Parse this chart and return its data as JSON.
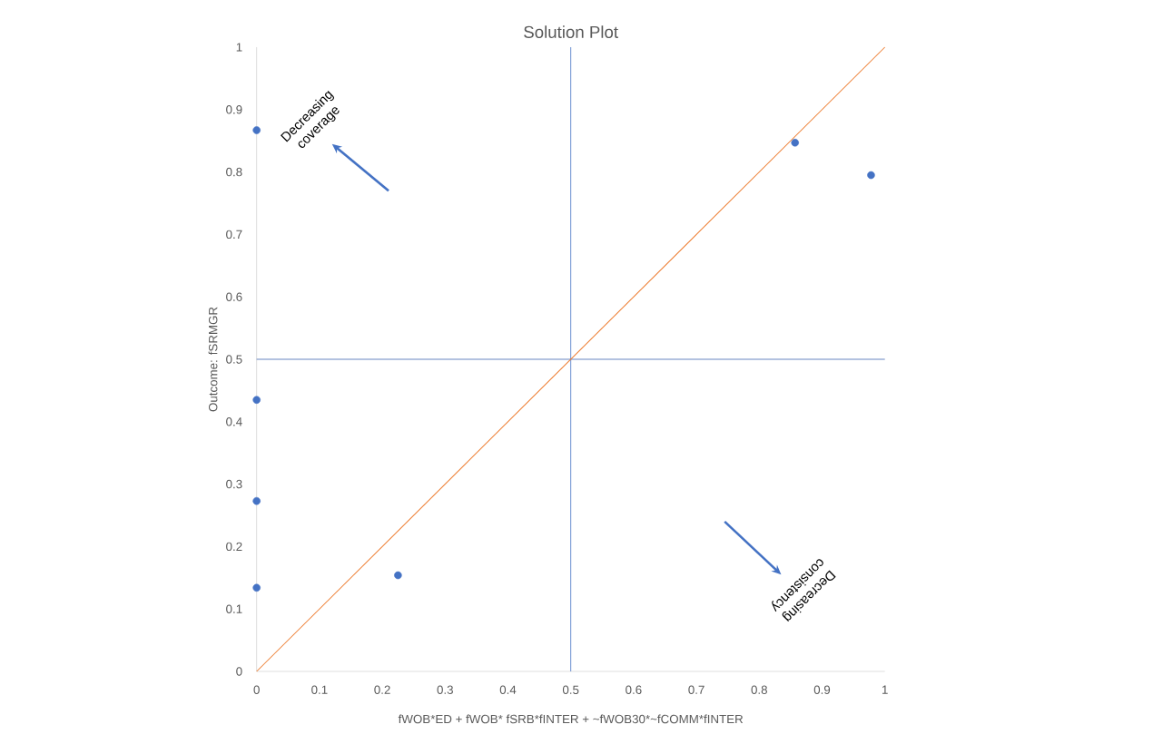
{
  "chart_data": {
    "type": "scatter",
    "title": "Solution Plot",
    "xlabel": "fWOB*ED + fWOB* fSRB*fINTER  + ~fWOB30*~fCOMM*fINTER",
    "ylabel": "Outcome: fSRMGR",
    "xlim": [
      0,
      1
    ],
    "ylim": [
      0,
      1
    ],
    "xticks": [
      0,
      0.1,
      0.2,
      0.3,
      0.4,
      0.5,
      0.6,
      0.7,
      0.8,
      0.9,
      1
    ],
    "yticks": [
      0,
      0.1,
      0.2,
      0.3,
      0.4,
      0.5,
      0.6,
      0.7,
      0.8,
      0.9,
      1
    ],
    "grid": false,
    "series": [
      {
        "color": "#4472c4",
        "marker": "circle",
        "x": [
          0,
          0,
          0,
          0,
          0.225,
          0.857,
          0.978
        ],
        "values": [
          0.867,
          0.435,
          0.273,
          0.134,
          0.154,
          0.847,
          0.795
        ]
      },
      {
        "type": "line",
        "color": "#ed7d31",
        "marker": "none",
        "x": [
          0,
          1
        ],
        "values": [
          0,
          1
        ]
      }
    ],
    "ref_lines": [
      {
        "axis": "x",
        "value": 0.5,
        "color": "#4472c4"
      },
      {
        "axis": "y",
        "value": 0.5,
        "color": "#3f64b0"
      }
    ],
    "annotations": [
      "Decreasing coverage",
      "Decreasing consistency"
    ]
  }
}
